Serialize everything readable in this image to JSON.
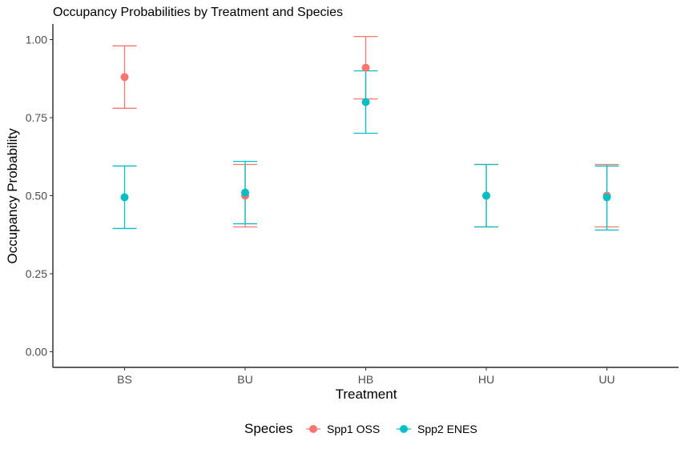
{
  "chart_data": {
    "type": "scatter",
    "title": "Occupancy Probabilities by Treatment and Species",
    "xlabel": "Treatment",
    "ylabel": "Occupancy Probability",
    "categories": [
      "BS",
      "BU",
      "HB",
      "HU",
      "UU"
    ],
    "ylim": [
      -0.05,
      1.05
    ],
    "y_ticks": [
      0.0,
      0.25,
      0.5,
      0.75,
      1.0
    ],
    "y_tick_labels": [
      "0.00",
      "0.25",
      "0.50",
      "0.75",
      "1.00"
    ],
    "grid": false,
    "legend": {
      "title": "Species",
      "position": "bottom"
    },
    "series": [
      {
        "name": "Spp1 OSS",
        "color": "#F8766D",
        "values": [
          0.88,
          0.5,
          0.91,
          0.5,
          0.5
        ],
        "lower": [
          0.78,
          0.4,
          0.81,
          0.4,
          0.4
        ],
        "upper": [
          0.98,
          0.6,
          1.01,
          0.6,
          0.6
        ]
      },
      {
        "name": "Spp2 ENES",
        "color": "#00BFC4",
        "values": [
          0.495,
          0.51,
          0.8,
          0.5,
          0.495
        ],
        "lower": [
          0.395,
          0.41,
          0.7,
          0.4,
          0.39
        ],
        "upper": [
          0.595,
          0.61,
          0.9,
          0.6,
          0.595
        ]
      }
    ]
  }
}
